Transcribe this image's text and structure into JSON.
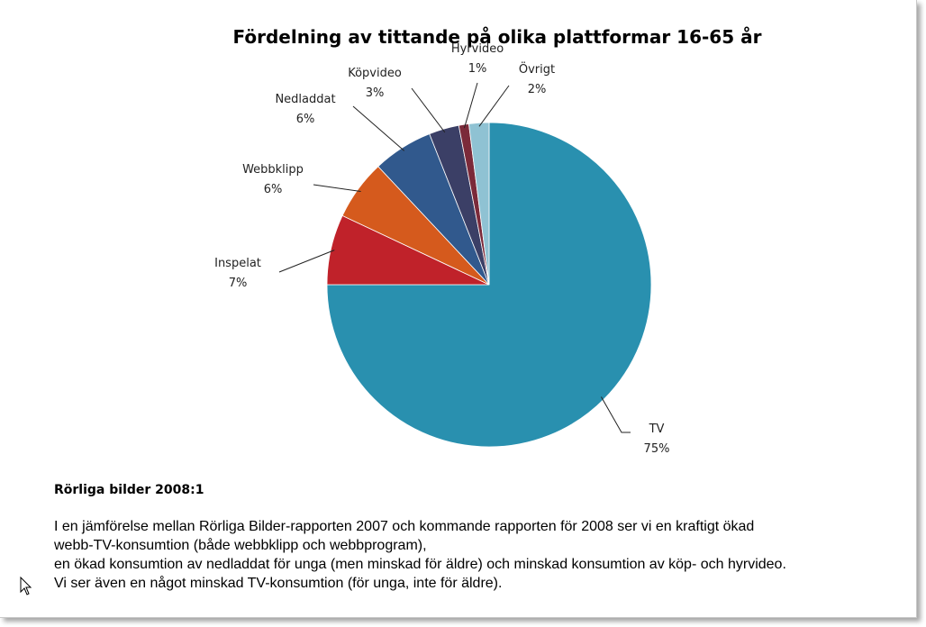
{
  "chart_data": {
    "type": "pie",
    "title": "Fördelning av tittande på olika plattformar 16-65 år",
    "start_angle_deg": 0,
    "direction": "clockwise",
    "slices": [
      {
        "label": "TV",
        "value": 75,
        "pct_label": "75%",
        "color": "#2990af"
      },
      {
        "label": "Inspelat",
        "value": 7,
        "pct_label": "7%",
        "color": "#c0222a"
      },
      {
        "label": "Webbklipp",
        "value": 6,
        "pct_label": "6%",
        "color": "#d55a1d"
      },
      {
        "label": "Nedladdat",
        "value": 6,
        "pct_label": "6%",
        "color": "#31598d"
      },
      {
        "label": "Köpvideo",
        "value": 3,
        "pct_label": "3%",
        "color": "#3b3f66"
      },
      {
        "label": "Hyrvideo",
        "value": 1,
        "pct_label": "1%",
        "color": "#7b2a3a"
      },
      {
        "label": "Övrigt",
        "value": 2,
        "pct_label": "2%",
        "color": "#8fc2d3"
      }
    ]
  },
  "caption": {
    "heading": "Rörliga bilder 2008:1",
    "lines": [
      "I en jämförelse mellan Rörliga Bilder-rapporten 2007 och kommande rapporten för 2008 ser vi en kraftigt ökad",
      "webb-TV-konsumtion (både webbklipp och webbprogram),",
      "en ökad konsumtion av nedladdat för unga (men minskad för äldre) och minskad konsumtion av köp- och hyrvideo.",
      "Vi ser även en något minskad TV-konsumtion (för unga, inte för äldre)."
    ]
  }
}
